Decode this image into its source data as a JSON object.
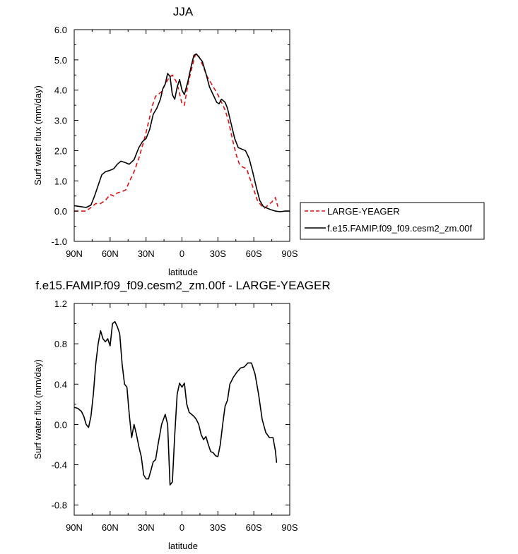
{
  "chart_data": [
    {
      "type": "line",
      "title": "JJA",
      "xlabel": "latitude",
      "ylabel": "Surf water flux (mm/day)",
      "xlim": [
        90,
        -90
      ],
      "ylim": [
        -1.0,
        6.0
      ],
      "xticks": [
        90,
        60,
        30,
        0,
        -30,
        -60,
        -90
      ],
      "xtick_labels": [
        "90N",
        "60N",
        "30N",
        "0",
        "30S",
        "60S",
        "90S"
      ],
      "yticks": [
        -1.0,
        0.0,
        1.0,
        2.0,
        3.0,
        4.0,
        5.0,
        6.0
      ],
      "ytick_labels": [
        "-1.0",
        "0.0",
        "1.0",
        "2.0",
        "3.0",
        "4.0",
        "5.0",
        "6.0"
      ],
      "legend_position": "right",
      "series": [
        {
          "name": "LARGE-YEAGER",
          "color": "#e01010",
          "dash": true,
          "x": [
            90,
            85,
            80,
            75,
            72,
            68,
            64,
            60,
            57,
            54,
            50,
            47,
            43,
            40,
            36,
            32,
            30,
            27,
            25,
            22,
            20,
            17,
            14,
            11,
            8,
            5,
            3,
            0,
            -2,
            -5,
            -8,
            -11,
            -13,
            -15,
            -18,
            -21,
            -24,
            -27,
            -30,
            -33,
            -36,
            -39,
            -42,
            -45,
            -48,
            -51,
            -54,
            -57,
            -60,
            -63,
            -66,
            -69,
            -72,
            -75,
            -78,
            -80
          ],
          "y": [
            0.0,
            0.0,
            0.0,
            0.15,
            0.25,
            0.25,
            0.35,
            0.55,
            0.5,
            0.6,
            0.65,
            0.7,
            1.05,
            1.3,
            1.75,
            2.3,
            2.6,
            3.1,
            3.45,
            3.8,
            3.85,
            3.95,
            4.2,
            4.4,
            4.5,
            4.3,
            4.05,
            3.55,
            3.5,
            4.2,
            4.7,
            5.15,
            5.2,
            5.05,
            4.75,
            4.45,
            4.25,
            4.05,
            3.85,
            3.6,
            3.35,
            2.95,
            2.4,
            1.9,
            1.55,
            1.45,
            1.4,
            1.05,
            0.7,
            0.35,
            0.2,
            0.1,
            0.2,
            0.3,
            0.45,
            0.15
          ]
        },
        {
          "name": "f.e15.FAMIP.f09_f09.cesm2_zm.00f",
          "color": "#000000",
          "dash": false,
          "x": [
            90,
            85,
            80,
            76,
            73,
            70,
            67,
            64,
            60,
            57,
            54,
            51,
            47,
            44,
            40,
            36,
            33,
            30,
            27,
            24,
            21,
            18,
            16,
            14,
            12,
            10,
            8,
            6,
            4,
            2,
            0,
            -2,
            -5,
            -8,
            -10,
            -12,
            -14,
            -17,
            -20,
            -23,
            -26,
            -29,
            -31,
            -33,
            -36,
            -38,
            -41,
            -44,
            -47,
            -50,
            -53,
            -56,
            -59,
            -62,
            -65,
            -68,
            -71,
            -74,
            -78,
            -82,
            -86,
            -90
          ],
          "y": [
            0.18,
            0.15,
            0.12,
            0.2,
            0.5,
            0.85,
            1.2,
            1.3,
            1.35,
            1.4,
            1.55,
            1.65,
            1.6,
            1.55,
            1.7,
            2.1,
            2.3,
            2.4,
            2.7,
            3.2,
            3.4,
            3.7,
            4.05,
            4.2,
            4.55,
            4.45,
            3.85,
            3.7,
            4.1,
            4.35,
            4.0,
            3.85,
            4.3,
            4.85,
            5.15,
            5.2,
            5.1,
            4.95,
            4.55,
            4.1,
            3.85,
            3.6,
            3.55,
            3.7,
            3.6,
            3.4,
            2.9,
            2.4,
            2.1,
            2.05,
            2.0,
            1.75,
            1.3,
            0.8,
            0.35,
            0.15,
            0.1,
            0.05,
            0.0,
            -0.02,
            0.0,
            0.0
          ]
        }
      ]
    },
    {
      "type": "line",
      "title": "f.e15.FAMIP.f09_f09.cesm2_zm.00f - LARGE-YEAGER",
      "xlabel": "latitude",
      "ylabel": "Surf water flux (mm/day)",
      "xlim": [
        90,
        -90
      ],
      "ylim": [
        -0.9,
        1.2
      ],
      "xticks": [
        90,
        60,
        30,
        0,
        -30,
        -60,
        -90
      ],
      "xtick_labels": [
        "90N",
        "60N",
        "30N",
        "0",
        "30S",
        "60S",
        "90S"
      ],
      "yticks": [
        -0.8,
        -0.4,
        0.0,
        0.4,
        0.8,
        1.2
      ],
      "ytick_labels": [
        "-0.8",
        "-0.4",
        "0.0",
        "0.4",
        "0.8",
        "1.2"
      ],
      "series": [
        {
          "name": "f.e15.FAMIP.f09_f09.cesm2_zm.00f - LARGE-YEAGER",
          "color": "#000000",
          "dash": false,
          "x": [
            90,
            87,
            84,
            82,
            80,
            78,
            76,
            74,
            72,
            70,
            68,
            66,
            64,
            62,
            60,
            58,
            56,
            54,
            52,
            50,
            48,
            46,
            44,
            42,
            40,
            38,
            36,
            34,
            32,
            30,
            28,
            26,
            24,
            22,
            20,
            17,
            14,
            12,
            10,
            8,
            6,
            4,
            2,
            0,
            -2,
            -4,
            -6,
            -8,
            -10,
            -12,
            -14,
            -16,
            -18,
            -20,
            -22,
            -24,
            -26,
            -28,
            -30,
            -32,
            -34,
            -36,
            -38,
            -40,
            -43,
            -46,
            -49,
            -52,
            -55,
            -58,
            -61,
            -64,
            -67,
            -70,
            -73,
            -76,
            -78,
            -79
          ],
          "y": [
            0.17,
            0.16,
            0.13,
            0.08,
            0.0,
            -0.03,
            0.08,
            0.3,
            0.6,
            0.8,
            0.93,
            0.85,
            0.82,
            0.85,
            0.78,
            1.0,
            1.02,
            0.97,
            0.9,
            0.6,
            0.4,
            0.37,
            0.1,
            -0.13,
            0.0,
            -0.1,
            -0.22,
            -0.32,
            -0.5,
            -0.54,
            -0.54,
            -0.46,
            -0.37,
            -0.35,
            -0.2,
            0.0,
            0.1,
            0.0,
            -0.6,
            -0.57,
            -0.1,
            0.3,
            0.41,
            0.37,
            0.41,
            0.2,
            0.12,
            0.1,
            0.08,
            0.05,
            0.0,
            -0.1,
            -0.15,
            -0.12,
            -0.2,
            -0.27,
            -0.28,
            -0.31,
            -0.32,
            -0.2,
            0.0,
            0.18,
            0.24,
            0.4,
            0.47,
            0.52,
            0.56,
            0.57,
            0.61,
            0.61,
            0.5,
            0.3,
            0.05,
            -0.08,
            -0.13,
            -0.13,
            -0.26,
            -0.38
          ]
        }
      ]
    }
  ]
}
